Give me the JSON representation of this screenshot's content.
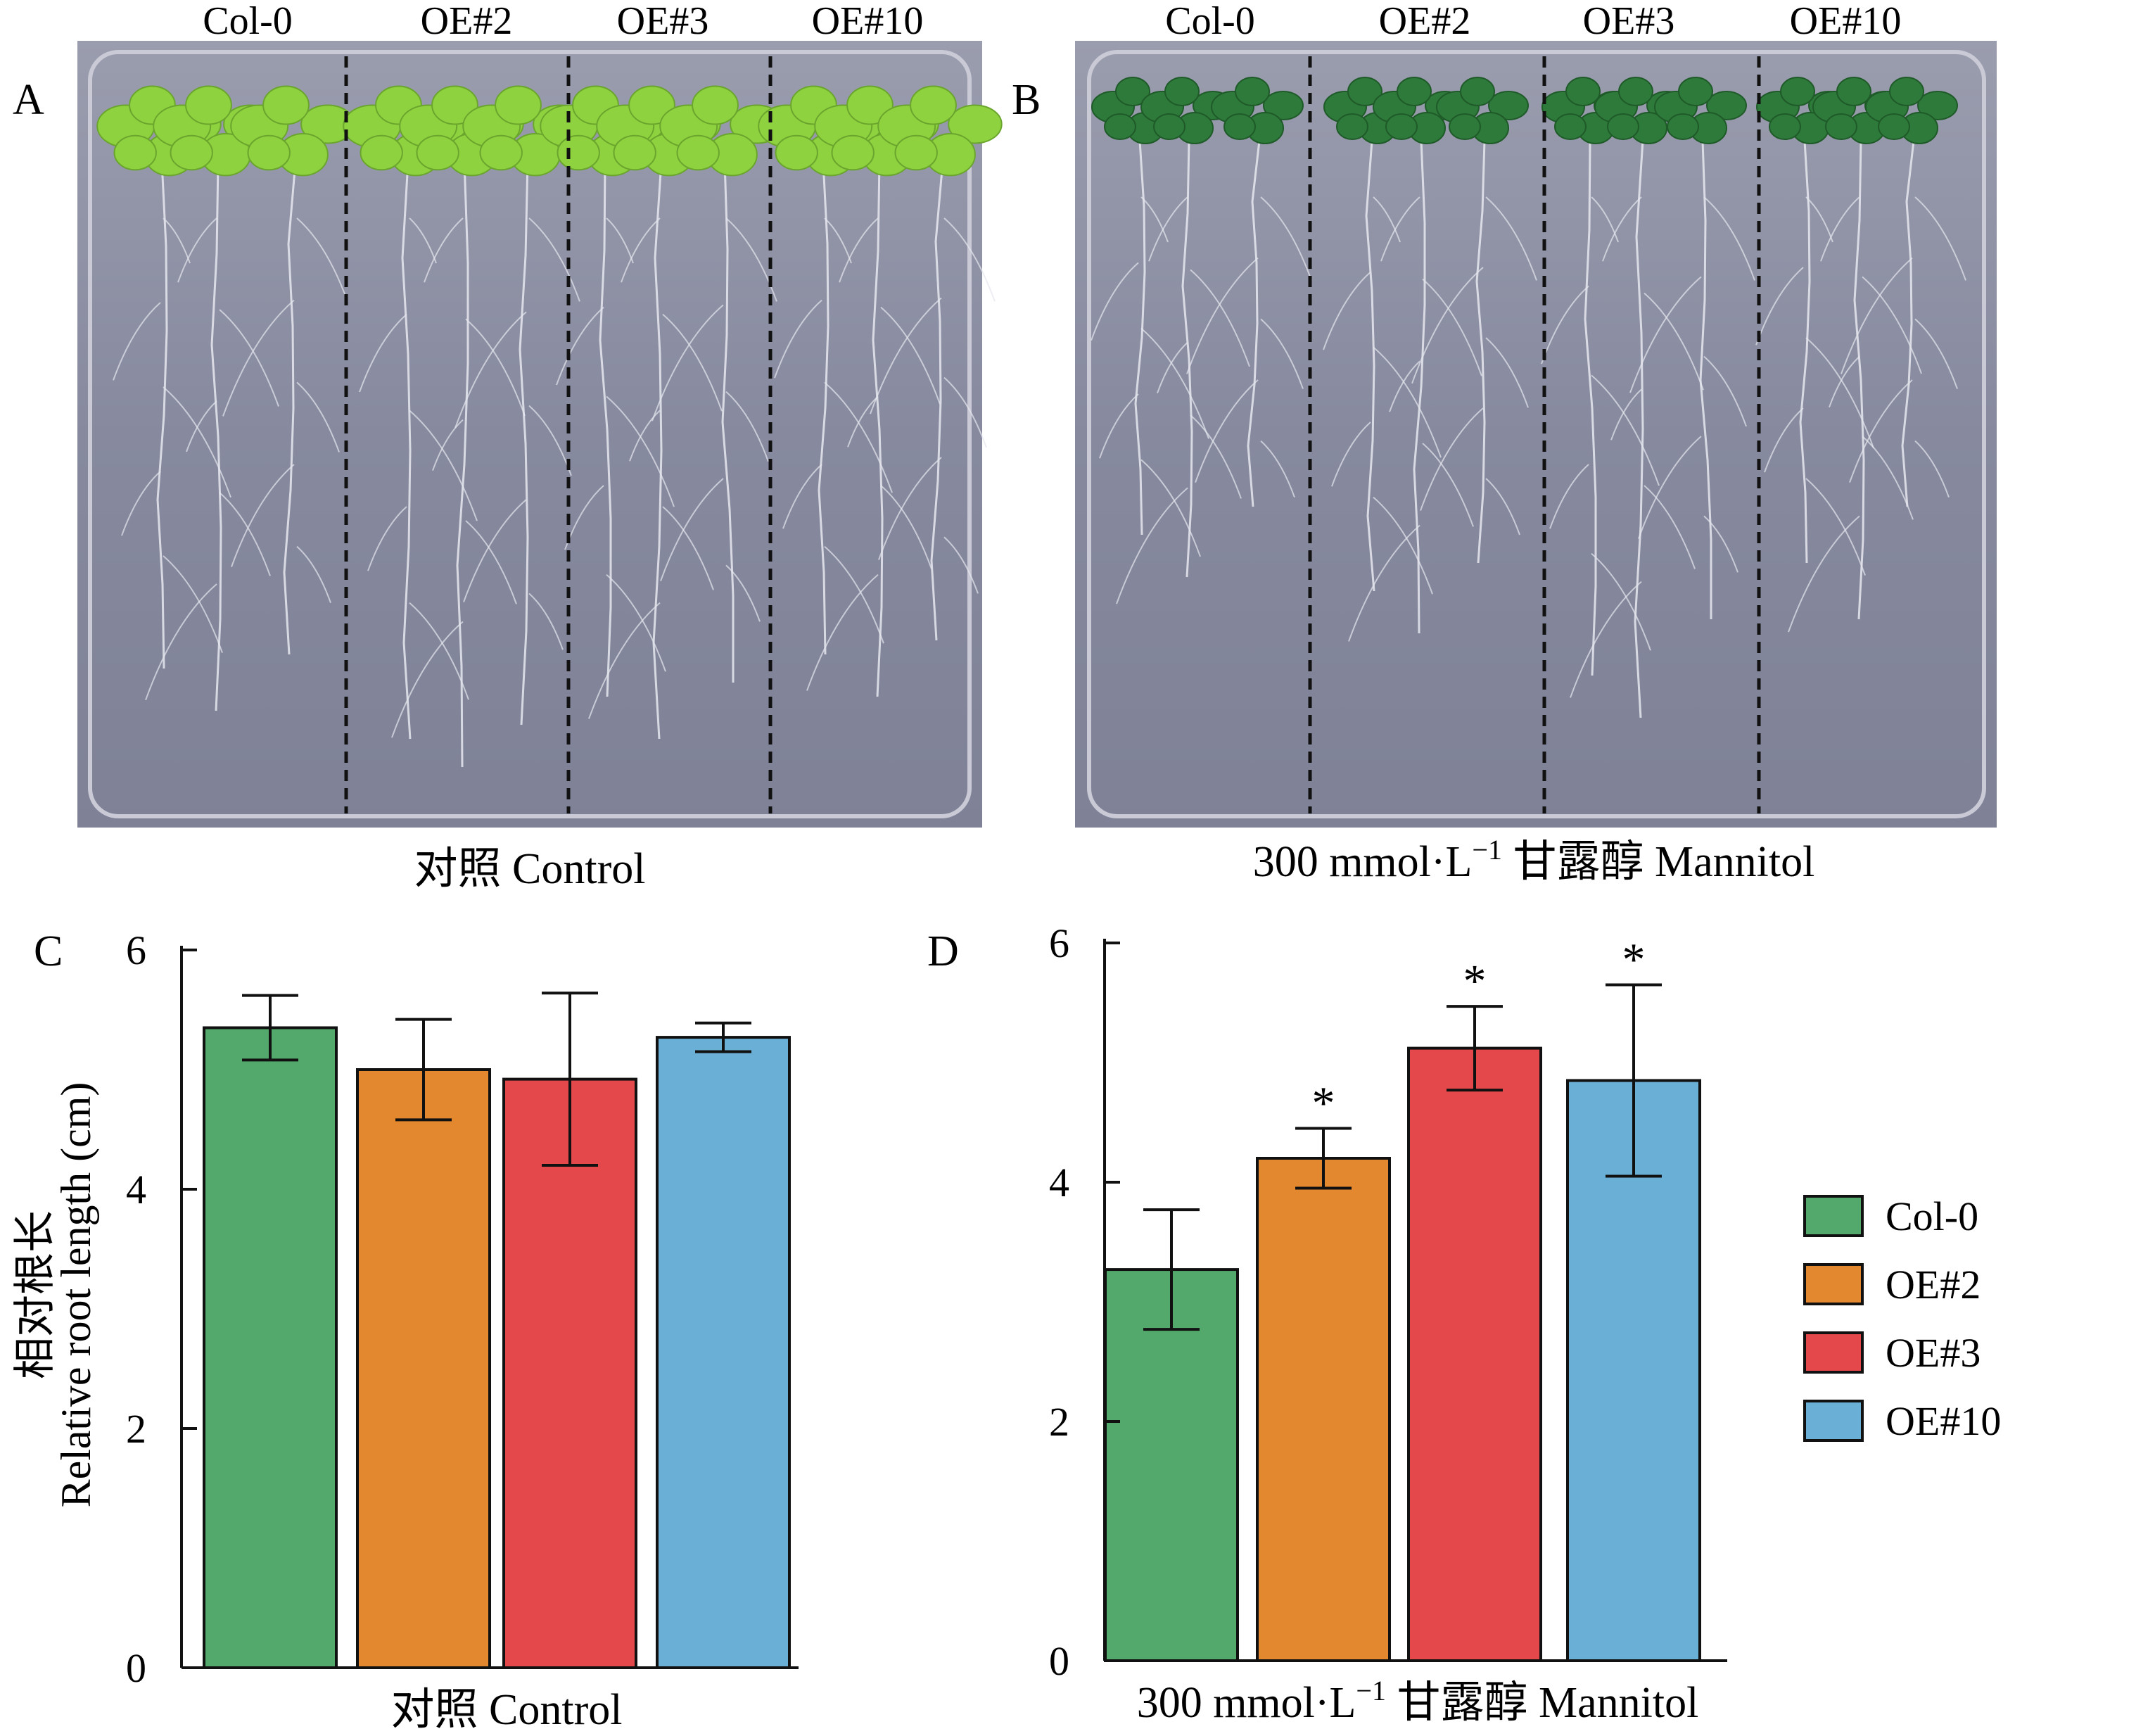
{
  "colors": {
    "Col-0": "#52a96b",
    "OE#2": "#e4882f",
    "OE#3": "#e5484a",
    "OE#10": "#6aafd5",
    "plate_bg": "#8e92a6",
    "leaf": "#8fd23f",
    "dark_leaf": "#2e7a3a",
    "root": "#e6e7ee"
  },
  "panels": {
    "A": {
      "letter": "A",
      "genotypes": [
        "Col-0",
        "OE#2",
        "OE#3",
        "OE#10"
      ],
      "caption": "对照 Control",
      "icon": "seedling-plate-photo"
    },
    "B": {
      "letter": "B",
      "genotypes": [
        "Col-0",
        "OE#2",
        "OE#3",
        "OE#10"
      ],
      "caption_main": "300 mmol·L",
      "caption_sup": "−1",
      "caption_rest": " 甘露醇 Mannitol",
      "icon": "seedling-plate-photo"
    }
  },
  "chart_data": [
    {
      "panel": "C",
      "type": "bar",
      "letter": "C",
      "categories": [
        "Col-0",
        "OE#2",
        "OE#3",
        "OE#10"
      ],
      "values": [
        5.35,
        5.0,
        4.92,
        5.27
      ],
      "errors": [
        0.27,
        0.42,
        0.72,
        0.12
      ],
      "significance": [
        "",
        "",
        "",
        ""
      ],
      "ylabel_cn": "相对根长",
      "ylabel_en": "Relative root length (cm)",
      "xlabel": "对照 Control",
      "ylim": [
        0,
        6
      ],
      "yticks": [
        "0",
        "2",
        "4",
        "6"
      ]
    },
    {
      "panel": "D",
      "type": "bar",
      "letter": "D",
      "categories": [
        "Col-0",
        "OE#2",
        "OE#3",
        "OE#10"
      ],
      "values": [
        3.27,
        4.2,
        5.12,
        4.85
      ],
      "errors": [
        0.5,
        0.25,
        0.35,
        0.8
      ],
      "significance": [
        "",
        "*",
        "*",
        "*"
      ],
      "xlabel_main": "300 mmol·L",
      "xlabel_sup": "−1",
      "xlabel_rest": " 甘露醇 Mannitol",
      "ylim": [
        0,
        6
      ],
      "yticks": [
        "0",
        "2",
        "4",
        "6"
      ]
    }
  ],
  "legend": {
    "placement": "right",
    "entries": [
      "Col-0",
      "OE#2",
      "OE#3",
      "OE#10"
    ]
  }
}
